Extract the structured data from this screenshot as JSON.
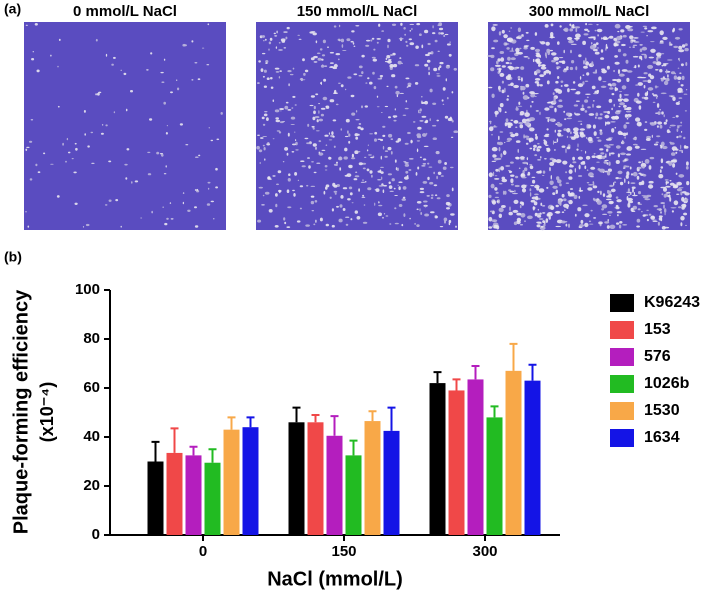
{
  "panel_a": {
    "label": "(a)",
    "titles": [
      "0 mmol/L NaCl",
      "150 mmol/L NaCl",
      "300 mmol/L NaCl"
    ]
  },
  "chart_data": {
    "type": "bar",
    "panel_label": "(b)",
    "xlabel": "NaCl (mmol/L)",
    "ylabel": "Plaque-forming efficiency",
    "ylabel_unit": "(x10⁻⁴)",
    "categories": [
      "0",
      "150",
      "300"
    ],
    "series": [
      {
        "name": "K96243",
        "color": "#000000",
        "values": [
          30,
          46,
          62
        ],
        "errors": [
          8,
          6,
          4.5
        ]
      },
      {
        "name": "153",
        "color": "#f04848",
        "values": [
          33.5,
          46,
          59
        ],
        "errors": [
          10,
          3,
          4.5
        ]
      },
      {
        "name": "576",
        "color": "#b41ebe",
        "values": [
          32.5,
          40.5,
          63.5
        ],
        "errors": [
          3.5,
          8,
          5.5
        ]
      },
      {
        "name": "1026b",
        "color": "#22bb22",
        "values": [
          29.5,
          32.5,
          48
        ],
        "errors": [
          5.5,
          6,
          4.5
        ]
      },
      {
        "name": "1530",
        "color": "#f8a848",
        "values": [
          43,
          46.5,
          67
        ],
        "errors": [
          5,
          4,
          11
        ]
      },
      {
        "name": "1634",
        "color": "#1414e6",
        "values": [
          44,
          42.5,
          63
        ],
        "errors": [
          4,
          9.5,
          6.5
        ]
      }
    ],
    "ylim": [
      0,
      100
    ],
    "yticks": [
      0,
      20,
      40,
      60,
      80,
      100
    ],
    "legend": "right"
  }
}
